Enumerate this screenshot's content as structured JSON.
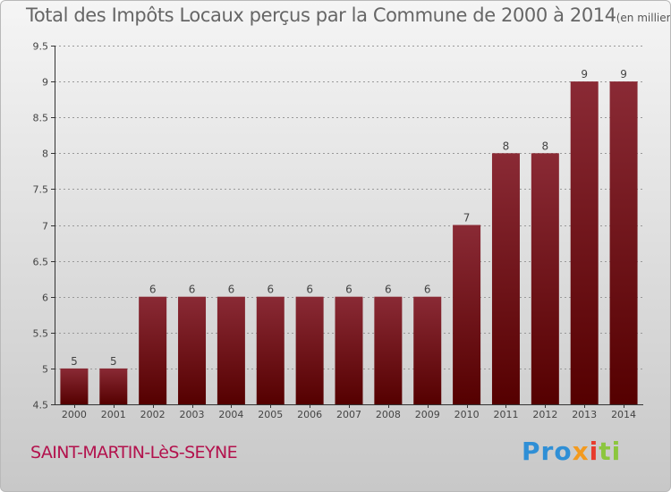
{
  "header": {
    "title": "Total des Impôts Locaux perçus par la Commune de 2000 à 2014",
    "subtitle": "(en milliers d'€)"
  },
  "footer": {
    "commune": "SAINT-MARTIN-LèS-SEYNE",
    "brand_parts": [
      "Pro",
      "x",
      "i",
      "ti"
    ]
  },
  "colors": {
    "bar_top": "#8a2a35",
    "bar_bottom": "#550000",
    "axis": "#333333",
    "grid": "#999999",
    "commune_text": "#b3124d"
  },
  "chart_data": {
    "type": "bar",
    "categories": [
      "2000",
      "2001",
      "2002",
      "2003",
      "2004",
      "2005",
      "2006",
      "2007",
      "2008",
      "2009",
      "2010",
      "2011",
      "2012",
      "2013",
      "2014"
    ],
    "values": [
      5,
      5,
      6,
      6,
      6,
      6,
      6,
      6,
      6,
      6,
      7,
      8,
      8,
      9,
      9
    ],
    "data_labels": [
      "5",
      "5",
      "6",
      "6",
      "6",
      "6",
      "6",
      "6",
      "6",
      "6",
      "7",
      "8",
      "8",
      "9",
      "9"
    ],
    "yticks": [
      "4.5",
      "5",
      "5.5",
      "6",
      "6.5",
      "7",
      "7.5",
      "8",
      "8.5",
      "9",
      "9.5"
    ],
    "ylim": [
      4.5,
      9.5
    ],
    "grid": true,
    "title": "Total des Impôts Locaux perçus par la Commune de 2000 à 2014",
    "xlabel": "",
    "ylabel": ""
  }
}
